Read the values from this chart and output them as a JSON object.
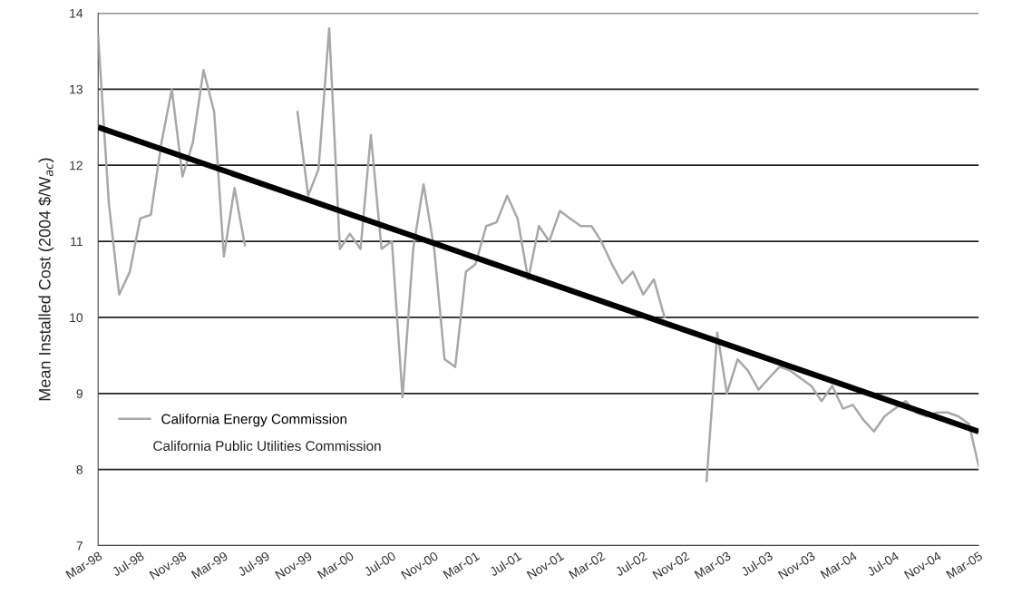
{
  "chart_data": {
    "type": "line",
    "ylabel": "Mean Installed Cost (2004 $/W$_{ac}$)",
    "x": [
      "1998-03",
      "1998-04",
      "1998-05",
      "1998-06",
      "1998-07",
      "1998-08",
      "1998-09",
      "1998-10",
      "1998-11",
      "1998-12",
      "1999-01",
      "1999-02",
      "1999-03",
      "1999-04",
      "1999-05",
      "1999-06",
      "1999-07",
      "1999-08",
      "1999-09",
      "1999-10",
      "1999-11",
      "1999-12",
      "2000-01",
      "2000-02",
      "2000-03",
      "2000-04",
      "2000-05",
      "2000-06",
      "2000-07",
      "2000-08",
      "2000-09",
      "2000-10",
      "2000-11",
      "2000-12",
      "2001-01",
      "2001-02",
      "2001-03",
      "2001-04",
      "2001-05",
      "2001-06",
      "2001-07",
      "2001-08",
      "2001-09",
      "2001-10",
      "2001-11",
      "2001-12",
      "2002-01",
      "2002-02",
      "2002-03",
      "2002-04",
      "2002-05",
      "2002-06",
      "2002-07",
      "2002-08",
      "2002-09",
      "2002-10",
      "2002-11",
      "2002-12",
      "2003-01",
      "2003-02",
      "2003-03",
      "2003-04",
      "2003-05",
      "2003-06",
      "2003-07",
      "2003-08",
      "2003-09",
      "2003-10",
      "2003-11",
      "2003-12",
      "2004-01",
      "2004-02",
      "2004-03",
      "2004-04",
      "2004-05",
      "2004-06",
      "2004-07",
      "2004-08",
      "2004-09",
      "2004-10",
      "2004-11",
      "2004-12",
      "2005-01",
      "2005-02",
      "2005-03"
    ],
    "series": [
      {
        "name": "California Energy Commission",
        "color": "#a8a8a8",
        "values": [
          13.7,
          11.5,
          10.3,
          10.6,
          11.3,
          11.35,
          12.3,
          13.0,
          11.85,
          12.3,
          13.25,
          12.7,
          10.8,
          11.7,
          10.95,
          null,
          null,
          null,
          null,
          12.7,
          11.6,
          11.95,
          13.8,
          10.9,
          11.1,
          10.9,
          12.4,
          10.9,
          11.0,
          8.95,
          10.9,
          11.75,
          10.9,
          9.45,
          9.35,
          10.6,
          10.7,
          11.2,
          11.25,
          11.6,
          11.3,
          10.5,
          11.2,
          11.0,
          11.4,
          11.3,
          11.2,
          11.2,
          11.0,
          10.7,
          10.45,
          10.6,
          10.3,
          10.5,
          10.0,
          null,
          null,
          null,
          7.85,
          9.8,
          9.0,
          9.45,
          9.3,
          9.05,
          9.2,
          9.35,
          9.3,
          9.2,
          9.1,
          8.9,
          9.1,
          8.8,
          8.85,
          8.65,
          8.5,
          8.7,
          8.8,
          8.9,
          8.75,
          8.7,
          8.75,
          8.75,
          8.7,
          8.6,
          8.05
        ]
      },
      {
        "type": "line",
        "color": "#000000",
        "x": [
          "1998-03",
          "2005-03"
        ],
        "values": [
          12.5,
          8.5
        ]
      }
    ],
    "annotations": [
      "California Public Utilities Commission"
    ],
    "xlim": [
      "1998-03",
      "2005-03"
    ],
    "xticks": [
      {
        "value": "1998-03",
        "label": "Mar-98"
      },
      {
        "value": "1998-07",
        "label": "Jul-98"
      },
      {
        "value": "1998-11",
        "label": "Nov-98"
      },
      {
        "value": "1999-03",
        "label": "Mar-99"
      },
      {
        "value": "1999-07",
        "label": "Jul-99"
      },
      {
        "value": "1999-11",
        "label": "Nov-99"
      },
      {
        "value": "2000-03",
        "label": "Mar-00"
      },
      {
        "value": "2000-07",
        "label": "Jul-00"
      },
      {
        "value": "2000-11",
        "label": "Nov-00"
      },
      {
        "value": "2001-03",
        "label": "Mar-01"
      },
      {
        "value": "2001-07",
        "label": "Jul-01"
      },
      {
        "value": "2001-11",
        "label": "Nov-01"
      },
      {
        "value": "2002-03",
        "label": "Mar-02"
      },
      {
        "value": "2002-07",
        "label": "Jul-02"
      },
      {
        "value": "2002-11",
        "label": "Nov-02"
      },
      {
        "value": "2003-03",
        "label": "Mar-03"
      },
      {
        "value": "2003-07",
        "label": "Jul-03"
      },
      {
        "value": "2003-11",
        "label": "Nov-03"
      },
      {
        "value": "2004-03",
        "label": "Mar-04"
      },
      {
        "value": "2004-07",
        "label": "Jul-04"
      },
      {
        "value": "2004-11",
        "label": "Nov-04"
      },
      {
        "value": "2005-03",
        "label": "Mar-05"
      }
    ],
    "ylim": [
      7,
      14
    ],
    "yticks": [
      7,
      8,
      9,
      10,
      11,
      12,
      13,
      14
    ],
    "grid": "y",
    "legend": "bottom left",
    "marker": "none",
    "line_style": "solid"
  }
}
